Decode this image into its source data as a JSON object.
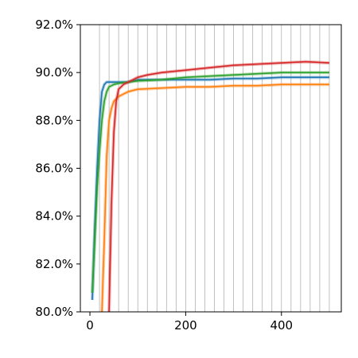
{
  "chart_data": {
    "type": "line",
    "title": "",
    "xlabel": "",
    "ylabel": "",
    "xlim": [
      -20,
      525
    ],
    "ylim": [
      80,
      92
    ],
    "xticks": [
      {
        "value": 0,
        "label": "0"
      },
      {
        "value": 200,
        "label": "200"
      },
      {
        "value": 400,
        "label": "400"
      }
    ],
    "yticks": [
      {
        "value": 80,
        "label": "80.0%"
      },
      {
        "value": 82,
        "label": "82.0%"
      },
      {
        "value": 84,
        "label": "84.0%"
      },
      {
        "value": 86,
        "label": "86.0%"
      },
      {
        "value": 88,
        "label": "88.0%"
      },
      {
        "value": 90,
        "label": "90.0%"
      },
      {
        "value": 92,
        "label": "92.0%"
      }
    ],
    "vertical_gridlines_x": [
      20,
      40,
      60,
      80,
      100,
      120,
      140,
      160,
      180,
      200,
      220,
      240,
      260,
      280,
      300,
      320,
      340,
      360,
      380,
      400,
      420,
      440,
      460,
      480,
      500
    ],
    "grid": "vertical-only",
    "legend": "none",
    "series": [
      {
        "color": "#1f77b4",
        "x": [
          5,
          10,
          15,
          20,
          25,
          30,
          35,
          40,
          50,
          60,
          80,
          100,
          150,
          200,
          250,
          300,
          350,
          400,
          450,
          500
        ],
        "y": [
          80.5,
          83.5,
          86.0,
          88.0,
          89.2,
          89.5,
          89.6,
          89.6,
          89.6,
          89.6,
          89.6,
          89.7,
          89.7,
          89.7,
          89.7,
          89.75,
          89.75,
          89.8,
          89.8,
          89.8
        ]
      },
      {
        "color": "#ff7f0e",
        "x": [
          25,
          30,
          35,
          40,
          45,
          50,
          60,
          70,
          80,
          100,
          150,
          200,
          250,
          300,
          350,
          400,
          450,
          500
        ],
        "y": [
          80.0,
          83.0,
          86.5,
          88.0,
          88.5,
          88.8,
          89.0,
          89.1,
          89.2,
          89.3,
          89.35,
          89.4,
          89.4,
          89.45,
          89.45,
          89.5,
          89.5,
          89.5
        ]
      },
      {
        "color": "#2ca02c",
        "x": [
          5,
          10,
          15,
          20,
          25,
          30,
          35,
          40,
          50,
          60,
          80,
          100,
          150,
          200,
          250,
          300,
          350,
          400,
          450,
          500
        ],
        "y": [
          80.8,
          83.0,
          85.2,
          86.7,
          88.0,
          88.8,
          89.2,
          89.4,
          89.5,
          89.55,
          89.6,
          89.65,
          89.7,
          89.8,
          89.85,
          89.9,
          89.95,
          90.0,
          90.0,
          90.0
        ]
      },
      {
        "color": "#d62728",
        "x": [
          40,
          45,
          50,
          55,
          60,
          65,
          70,
          80,
          100,
          120,
          150,
          200,
          250,
          300,
          350,
          400,
          450,
          500
        ],
        "y": [
          80.0,
          84.5,
          87.5,
          88.8,
          89.3,
          89.4,
          89.5,
          89.6,
          89.8,
          89.9,
          90.0,
          90.1,
          90.2,
          90.3,
          90.35,
          90.4,
          90.45,
          90.4
        ]
      }
    ]
  }
}
